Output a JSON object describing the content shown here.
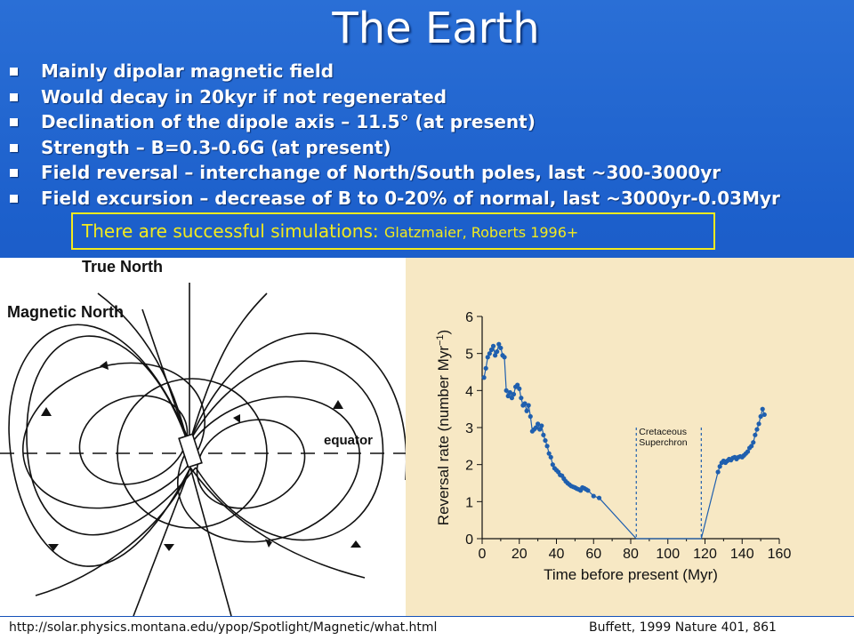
{
  "slide": {
    "title": "The Earth",
    "bullets": [
      "Mainly dipolar magnetic field",
      "Would decay in 20kyr if not regenerated",
      "Declination of the dipole axis – 11.5° (at present)",
      "Strength – B=0.3-0.6G (at present)",
      "Field reversal – interchange of North/South poles, last ~300-3000yr",
      "Field excursion – decrease of B to 0-20% of normal, last ~3000yr-0.03Myr"
    ],
    "simulation_text": "There are successful simulations: ",
    "simulation_ref": "Glatzmaier, Roberts 1996+",
    "colors": {
      "background": "#1c5fcb",
      "highlight": "#f2ea1e",
      "chart_bg": "#f7e8c4",
      "series": "#1f5fae"
    }
  },
  "diagram": {
    "true_north": "True  North",
    "magnetic_north": "Magnetic  North",
    "equator": "equator"
  },
  "footer": {
    "left": "http://solar.physics.montana.edu/ypop/Spotlight/Magnetic/what.html",
    "right": "Buffett, 1999 Nature 401, 861"
  },
  "chart_data": {
    "type": "line",
    "xlabel": "Time before present (Myr)",
    "ylabel": "Reversal rate (number Myr",
    "ylabel_sup": "−1",
    "ylabel_close": ")",
    "xlim": [
      0,
      160
    ],
    "ylim": [
      0,
      6
    ],
    "xticks": [
      0,
      20,
      40,
      60,
      80,
      100,
      120,
      140,
      160
    ],
    "yticks": [
      0,
      1,
      2,
      3,
      4,
      5,
      6
    ],
    "annotation": [
      "Cretaceous",
      "Superchron"
    ],
    "superchron_bounds": [
      83,
      118
    ],
    "series": [
      {
        "values": [
          [
            1,
            4.35
          ],
          [
            2,
            4.6
          ],
          [
            3,
            4.9
          ],
          [
            4,
            5.0
          ],
          [
            5,
            5.1
          ],
          [
            6,
            5.2
          ],
          [
            7,
            4.95
          ],
          [
            8,
            5.05
          ],
          [
            9,
            5.25
          ],
          [
            10,
            5.15
          ],
          [
            11,
            4.95
          ],
          [
            12,
            4.9
          ],
          [
            13,
            4.0
          ],
          [
            14,
            3.85
          ],
          [
            15,
            3.95
          ],
          [
            16,
            3.8
          ],
          [
            17,
            3.9
          ],
          [
            18,
            4.1
          ],
          [
            19,
            4.15
          ],
          [
            20,
            4.05
          ],
          [
            21,
            3.8
          ],
          [
            22,
            3.6
          ],
          [
            23,
            3.65
          ],
          [
            24,
            3.45
          ],
          [
            25,
            3.6
          ],
          [
            26,
            3.3
          ],
          [
            27,
            2.9
          ],
          [
            28,
            2.95
          ],
          [
            29,
            3.0
          ],
          [
            30,
            3.1
          ],
          [
            31,
            2.95
          ],
          [
            32,
            3.05
          ],
          [
            33,
            2.8
          ],
          [
            34,
            2.65
          ],
          [
            35,
            2.5
          ],
          [
            36,
            2.3
          ],
          [
            37,
            2.2
          ],
          [
            38,
            2.0
          ],
          [
            39,
            1.9
          ],
          [
            40,
            1.85
          ],
          [
            41,
            1.8
          ],
          [
            42,
            1.72
          ],
          [
            43,
            1.7
          ],
          [
            44,
            1.62
          ],
          [
            45,
            1.55
          ],
          [
            46,
            1.5
          ],
          [
            47,
            1.46
          ],
          [
            48,
            1.42
          ],
          [
            49,
            1.4
          ],
          [
            50,
            1.38
          ],
          [
            51,
            1.35
          ],
          [
            52,
            1.33
          ],
          [
            53,
            1.3
          ],
          [
            54,
            1.38
          ],
          [
            55,
            1.36
          ],
          [
            56,
            1.33
          ],
          [
            57,
            1.3
          ],
          [
            60,
            1.15
          ],
          [
            63,
            1.1
          ],
          [
            83,
            0
          ],
          [
            118,
            0
          ],
          [
            127,
            1.8
          ],
          [
            128,
            1.95
          ],
          [
            129,
            2.05
          ],
          [
            130,
            2.1
          ],
          [
            131,
            2.05
          ],
          [
            132,
            2.1
          ],
          [
            133,
            2.15
          ],
          [
            134,
            2.12
          ],
          [
            135,
            2.18
          ],
          [
            136,
            2.2
          ],
          [
            137,
            2.15
          ],
          [
            138,
            2.2
          ],
          [
            139,
            2.22
          ],
          [
            140,
            2.2
          ],
          [
            141,
            2.25
          ],
          [
            142,
            2.3
          ],
          [
            143,
            2.35
          ],
          [
            144,
            2.45
          ],
          [
            145,
            2.5
          ],
          [
            146,
            2.6
          ],
          [
            147,
            2.8
          ],
          [
            148,
            2.95
          ],
          [
            149,
            3.1
          ],
          [
            150,
            3.3
          ],
          [
            151,
            3.5
          ],
          [
            152,
            3.35
          ]
        ]
      }
    ]
  }
}
